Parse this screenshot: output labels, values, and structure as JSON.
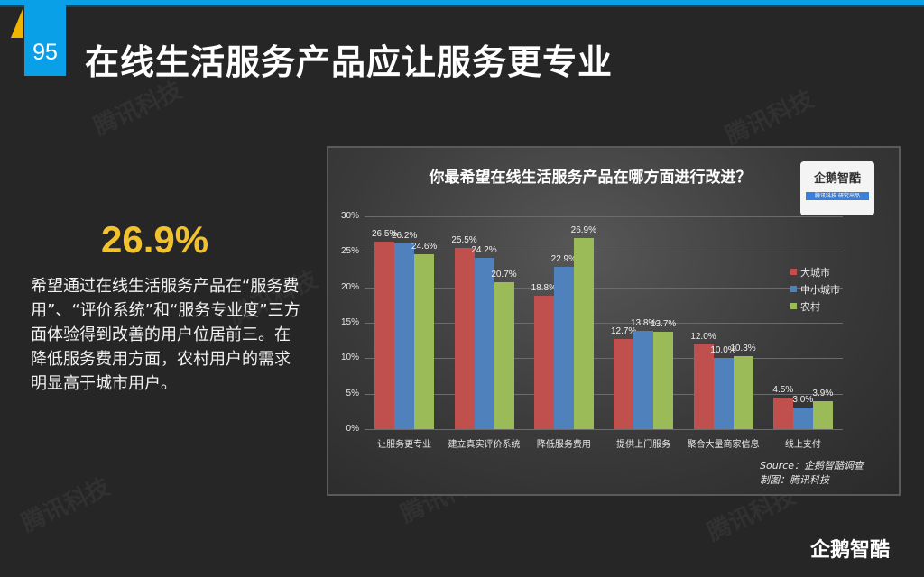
{
  "page": {
    "number": "95",
    "title": "在线生活服务产品应让服务更专业",
    "watermark": "腾讯科技"
  },
  "highlight": {
    "stat": "26.9%",
    "description": "希望通过在线生活服务产品在“服务费用”、“评价系统”和“服务专业度”三方面体验得到改善的用户位居前三。在降低服务费用方面，农村用户的需求明显高于城市用户。"
  },
  "chart_card": {
    "badge_name": "企鹅智酷",
    "badge_sub": "腾讯科技  研究出品",
    "source": "Source：企鹅智酷调查",
    "made_by": "制图：腾讯科技"
  },
  "footer": {
    "logo": "企鹅智酷"
  },
  "chart_data": {
    "type": "bar",
    "title": "你最希望在线生活服务产品在哪方面进行改进？",
    "categories": [
      "让服务更专业",
      "建立真实评价系统",
      "降低服务费用",
      "提供上门服务",
      "聚合大量商家信息",
      "线上支付"
    ],
    "series": [
      {
        "name": "大城市",
        "color": "#c0504d",
        "values": [
          26.5,
          25.5,
          18.8,
          12.7,
          12.0,
          4.5
        ]
      },
      {
        "name": "中小城市",
        "color": "#4f81bd",
        "values": [
          26.2,
          24.2,
          22.9,
          13.8,
          10.0,
          3.0
        ]
      },
      {
        "name": "农村",
        "color": "#9bbb59",
        "values": [
          24.6,
          20.7,
          26.9,
          13.7,
          10.3,
          3.9
        ]
      }
    ],
    "yticks": [
      "0%",
      "5%",
      "10%",
      "15%",
      "20%",
      "25%",
      "30%"
    ],
    "ylim": [
      0,
      30
    ],
    "xlabel": "",
    "ylabel": "",
    "grid": true,
    "legend_position": "right",
    "value_labels": true
  }
}
